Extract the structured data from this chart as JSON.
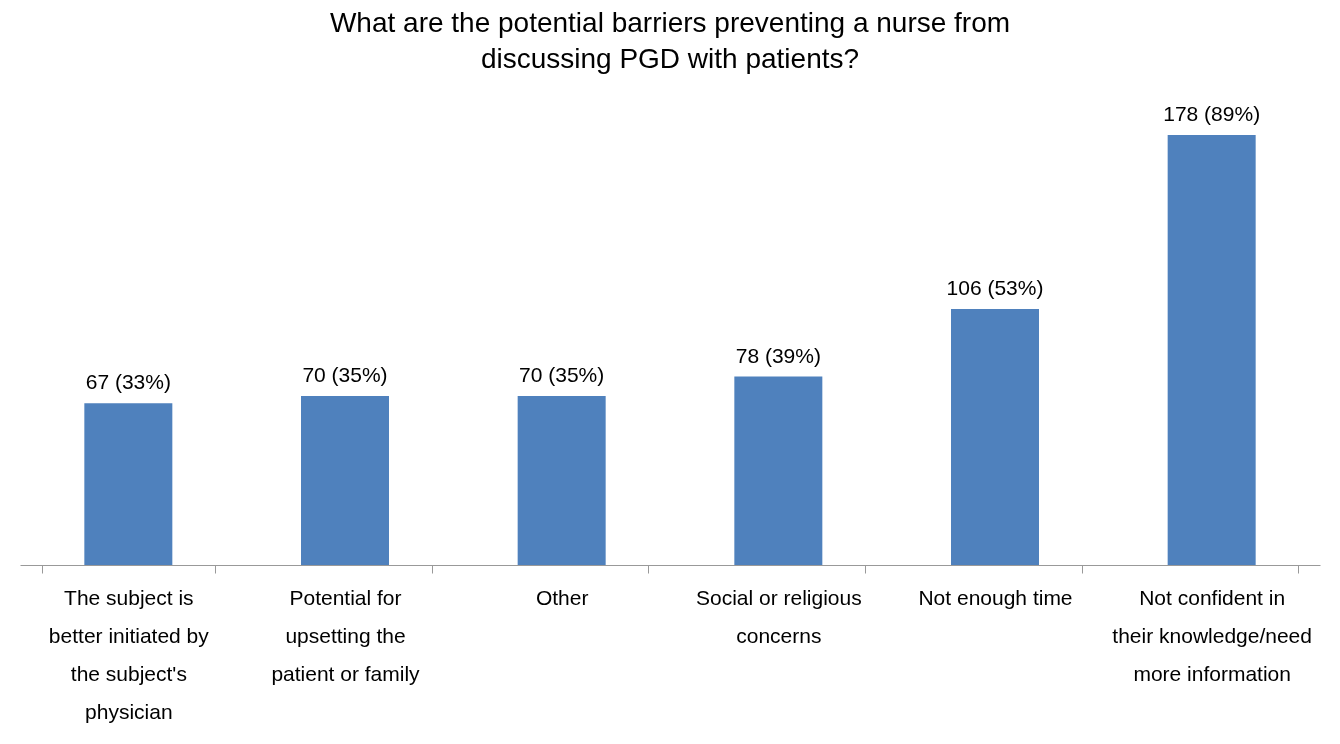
{
  "chart_data": {
    "type": "bar",
    "title": "What are the potential barriers preventing a nurse from discussing PGD with patients?",
    "categories": [
      "The subject is better initiated by the subject's physician",
      "Potential for upsetting the patient or family",
      "Other",
      "Social or religious concerns",
      "Not enough time",
      "Not confident in their knowledge/need more information"
    ],
    "values": [
      67,
      70,
      70,
      78,
      106,
      178
    ],
    "value_labels": [
      "67 (33%)",
      "70 (35%)",
      "70 (35%)",
      "78 (39%)",
      "106 (53%)",
      "178 (89%)"
    ],
    "color": "#4f81bd"
  }
}
